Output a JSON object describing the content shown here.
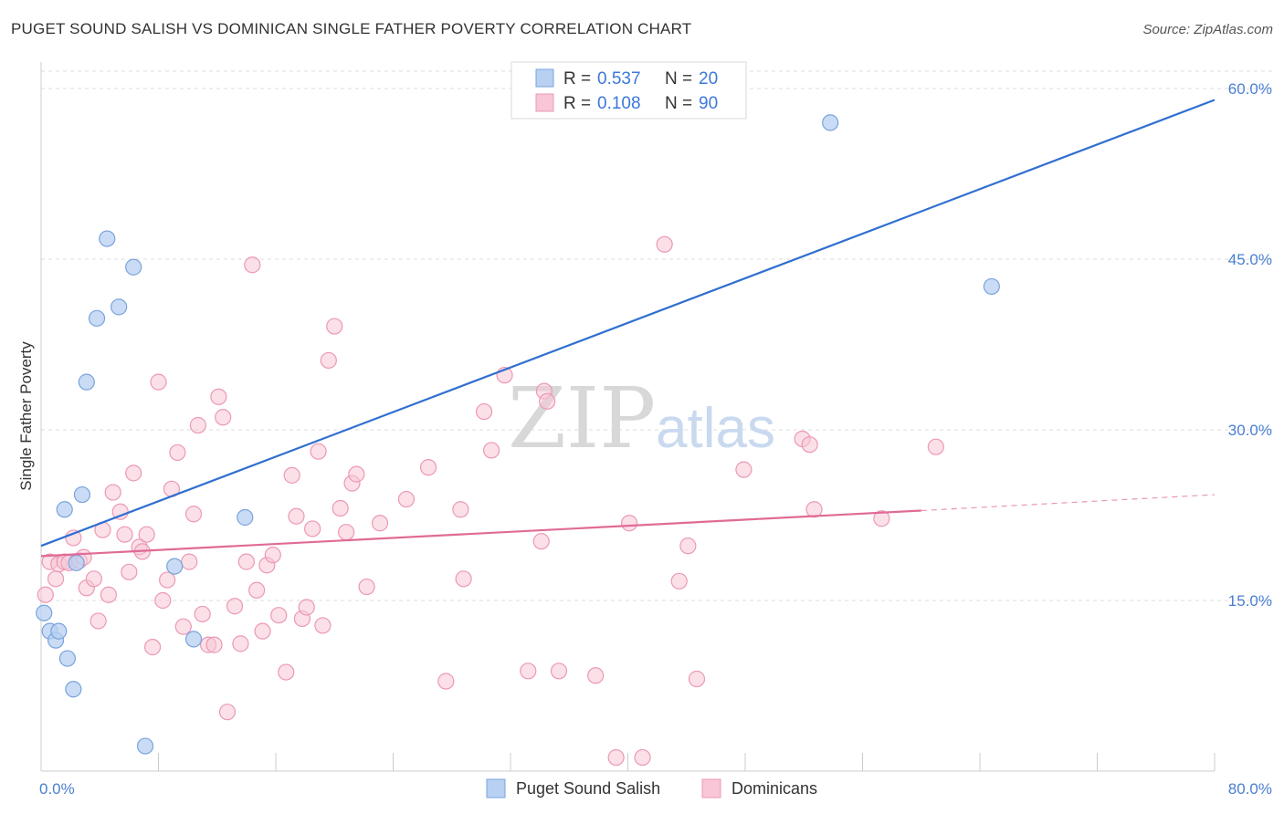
{
  "header": {
    "title": "PUGET SOUND SALISH VS DOMINICAN SINGLE FATHER POVERTY CORRELATION CHART",
    "source": "Source: ZipAtlas.com"
  },
  "watermark": {
    "zip": "ZIP",
    "atlas": "atlas"
  },
  "colors": {
    "blue_fill": "#b8d0f2",
    "blue_stroke": "#7aa3dc",
    "blue_line": "#2f6fd0",
    "pink_fill": "#f8c6d6",
    "pink_stroke": "#ec98b4",
    "pink_line": "#e06b96",
    "grid": "#dcdcdc",
    "axis_label": "#4a7fd0"
  },
  "chart_data": {
    "type": "scatter",
    "title": "PUGET SOUND SALISH VS DOMINICAN SINGLE FATHER POVERTY CORRELATION CHART",
    "xlabel": "",
    "ylabel": "Single Father Poverty",
    "xlim": [
      0,
      80
    ],
    "ylim": [
      0,
      60
    ],
    "x_tick_labels": [
      "0.0%",
      "80.0%"
    ],
    "y_ticks": [
      15,
      30,
      45,
      60
    ],
    "y_tick_labels": [
      "15.0%",
      "30.0%",
      "45.0%",
      "60.0%"
    ],
    "grid": true,
    "legend": {
      "position": "top-center",
      "entries": [
        {
          "r_label": "R =",
          "r_value": "0.537",
          "n_label": "N =",
          "n_value": "20"
        },
        {
          "r_label": "R =",
          "r_value": "0.108",
          "n_label": "N =",
          "n_value": "90"
        }
      ]
    },
    "series": [
      {
        "name": "Puget Sound Salish",
        "color": "#b8d0f2",
        "trend": {
          "x": [
            0,
            80
          ],
          "y": [
            19.8,
            59.0
          ]
        },
        "points": [
          [
            0.2,
            13.9
          ],
          [
            0.6,
            12.3
          ],
          [
            1.0,
            11.5
          ],
          [
            1.2,
            12.3
          ],
          [
            1.6,
            23.0
          ],
          [
            1.8,
            9.9
          ],
          [
            2.2,
            7.2
          ],
          [
            2.4,
            18.3
          ],
          [
            2.8,
            24.3
          ],
          [
            3.1,
            34.2
          ],
          [
            3.8,
            39.8
          ],
          [
            4.5,
            46.8
          ],
          [
            5.3,
            40.8
          ],
          [
            6.3,
            44.3
          ],
          [
            7.1,
            2.2
          ],
          [
            9.1,
            18.0
          ],
          [
            10.4,
            11.6
          ],
          [
            13.9,
            22.3
          ],
          [
            53.8,
            57.0
          ],
          [
            64.8,
            42.6
          ]
        ]
      },
      {
        "name": "Dominicans",
        "color": "#f8c6d6",
        "trend": {
          "x": [
            0,
            60
          ],
          "y": [
            18.9,
            22.9
          ],
          "dashed_extension": {
            "x": [
              60,
              80
            ],
            "y": [
              22.9,
              24.3
            ]
          }
        },
        "points": [
          [
            0.3,
            15.5
          ],
          [
            0.6,
            18.4
          ],
          [
            1.0,
            16.9
          ],
          [
            1.2,
            18.2
          ],
          [
            1.6,
            18.4
          ],
          [
            1.9,
            18.3
          ],
          [
            2.2,
            20.5
          ],
          [
            2.6,
            18.5
          ],
          [
            2.9,
            18.8
          ],
          [
            3.1,
            16.1
          ],
          [
            3.6,
            16.9
          ],
          [
            3.9,
            13.2
          ],
          [
            4.2,
            21.2
          ],
          [
            4.6,
            15.5
          ],
          [
            4.9,
            24.5
          ],
          [
            5.4,
            22.8
          ],
          [
            5.7,
            20.8
          ],
          [
            6.0,
            17.5
          ],
          [
            6.3,
            26.2
          ],
          [
            6.7,
            19.7
          ],
          [
            6.9,
            19.3
          ],
          [
            7.2,
            20.8
          ],
          [
            7.6,
            10.9
          ],
          [
            8.0,
            34.2
          ],
          [
            8.3,
            15.0
          ],
          [
            8.6,
            16.8
          ],
          [
            8.9,
            24.8
          ],
          [
            9.3,
            28.0
          ],
          [
            9.7,
            12.7
          ],
          [
            10.1,
            18.4
          ],
          [
            10.4,
            22.6
          ],
          [
            10.7,
            30.4
          ],
          [
            11.0,
            13.8
          ],
          [
            11.4,
            11.1
          ],
          [
            11.8,
            11.1
          ],
          [
            12.1,
            32.9
          ],
          [
            12.4,
            31.1
          ],
          [
            12.7,
            5.2
          ],
          [
            13.2,
            14.5
          ],
          [
            13.6,
            11.2
          ],
          [
            14.0,
            18.4
          ],
          [
            14.4,
            44.5
          ],
          [
            14.7,
            15.9
          ],
          [
            15.1,
            12.3
          ],
          [
            15.4,
            18.1
          ],
          [
            15.8,
            19.0
          ],
          [
            16.2,
            13.7
          ],
          [
            16.7,
            8.7
          ],
          [
            17.1,
            26.0
          ],
          [
            17.4,
            22.4
          ],
          [
            17.8,
            13.4
          ],
          [
            18.1,
            14.4
          ],
          [
            18.5,
            21.3
          ],
          [
            18.9,
            28.1
          ],
          [
            19.2,
            12.8
          ],
          [
            19.6,
            36.1
          ],
          [
            20.0,
            39.1
          ],
          [
            20.4,
            23.1
          ],
          [
            20.8,
            21.0
          ],
          [
            21.2,
            25.3
          ],
          [
            21.5,
            26.1
          ],
          [
            22.2,
            16.2
          ],
          [
            23.1,
            21.8
          ],
          [
            24.9,
            23.9
          ],
          [
            26.4,
            26.7
          ],
          [
            27.6,
            7.9
          ],
          [
            28.6,
            23.0
          ],
          [
            28.8,
            16.9
          ],
          [
            30.2,
            31.6
          ],
          [
            30.7,
            28.2
          ],
          [
            31.6,
            34.8
          ],
          [
            33.2,
            8.8
          ],
          [
            34.1,
            20.2
          ],
          [
            34.3,
            33.4
          ],
          [
            34.5,
            32.5
          ],
          [
            35.3,
            8.8
          ],
          [
            37.8,
            8.4
          ],
          [
            39.2,
            1.2
          ],
          [
            40.1,
            21.8
          ],
          [
            41.0,
            1.2
          ],
          [
            42.5,
            46.3
          ],
          [
            43.5,
            16.7
          ],
          [
            44.1,
            19.8
          ],
          [
            44.7,
            8.1
          ],
          [
            47.9,
            26.5
          ],
          [
            51.9,
            29.2
          ],
          [
            52.4,
            28.7
          ],
          [
            52.7,
            23.0
          ],
          [
            57.3,
            22.2
          ],
          [
            61.0,
            28.5
          ]
        ]
      }
    ]
  },
  "bottom_legend": [
    {
      "label": "Puget Sound Salish"
    },
    {
      "label": "Dominicans"
    }
  ]
}
